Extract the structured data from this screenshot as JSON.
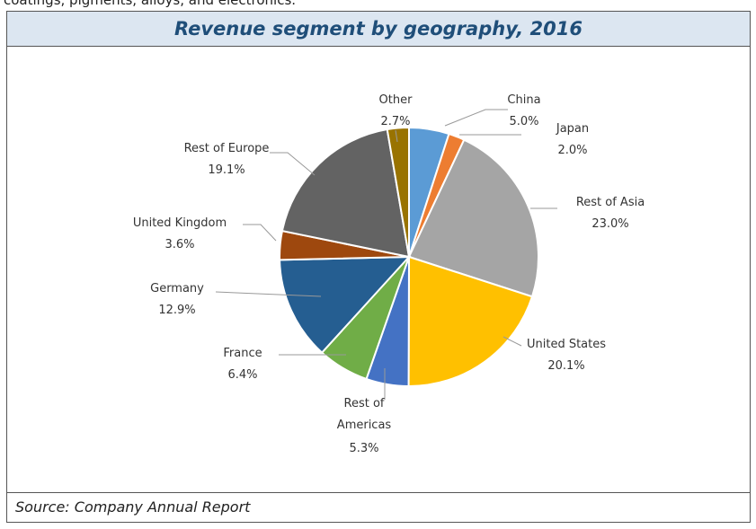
{
  "page_text": "coatings, pigments, alloys, and electronics.",
  "chart_data": {
    "type": "pie",
    "title": "Revenue segment by geography, 2016",
    "categories": [
      "China",
      "Japan",
      "Rest of Asia",
      "United States",
      "Rest of Americas",
      "France",
      "Germany",
      "United Kingdom",
      "Rest of Europe",
      "Other"
    ],
    "values": [
      5.0,
      2.0,
      23.0,
      20.1,
      5.3,
      6.4,
      12.9,
      3.6,
      19.1,
      2.7
    ],
    "value_labels": [
      "5.0%",
      "2.0%",
      "23.0%",
      "20.1%",
      "5.3%",
      "6.4%",
      "12.9%",
      "3.6%",
      "19.1%",
      "2.7%"
    ],
    "colors": [
      "#5b9bd5",
      "#ed7d31",
      "#a5a5a5",
      "#ffc000",
      "#4472c4",
      "#70ad47",
      "#255e91",
      "#9e480e",
      "#636363",
      "#997300"
    ],
    "source": "Source: Company Annual Report"
  }
}
